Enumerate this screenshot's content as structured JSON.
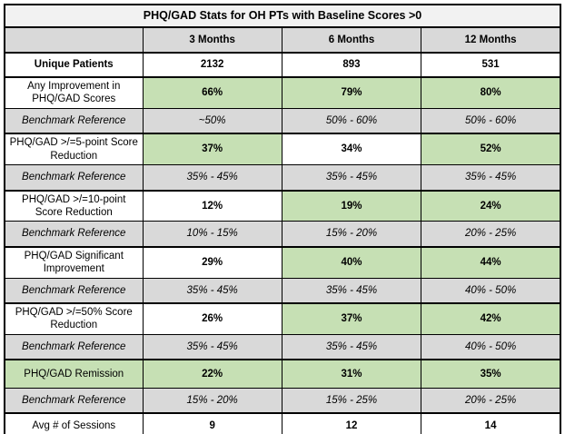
{
  "page": {
    "background": "#d9d9d9",
    "sheet_background": "#ffffff"
  },
  "colors": {
    "highlight_green": "#c6e0b4",
    "benchmark_gray": "#d9d9d9",
    "header_gray": "#d9d9d9",
    "title_bg": "#f2f2f2",
    "border": "#000000"
  },
  "table": {
    "title": "PHQ/GAD Stats for OH PTs with Baseline Scores >0",
    "column_headers": [
      "",
      "3 Months",
      "6 Months",
      "12 Months"
    ],
    "rows": [
      {
        "kind": "stat",
        "bold_label": true,
        "label_highlight": false,
        "label": "Unique Patients",
        "values": [
          "2132",
          "893",
          "531"
        ],
        "value_highlights": [
          false,
          false,
          false
        ]
      },
      {
        "kind": "metric",
        "bold_label": false,
        "label_highlight": false,
        "label": "Any Improvement in PHQ/GAD Scores",
        "values": [
          "66%",
          "79%",
          "80%"
        ],
        "value_highlights": [
          true,
          true,
          true
        ]
      },
      {
        "kind": "benchmark",
        "bold_label": false,
        "label_highlight": false,
        "label": "Benchmark Reference",
        "values": [
          "~50%",
          "50% - 60%",
          "50% - 60%"
        ],
        "value_highlights": [
          false,
          false,
          false
        ]
      },
      {
        "kind": "metric",
        "bold_label": false,
        "label_highlight": false,
        "label": "PHQ/GAD >/=5-point Score Reduction",
        "values": [
          "37%",
          "34%",
          "52%"
        ],
        "value_highlights": [
          true,
          false,
          true
        ]
      },
      {
        "kind": "benchmark",
        "bold_label": false,
        "label_highlight": false,
        "label": "Benchmark Reference",
        "values": [
          "35% - 45%",
          "35% - 45%",
          "35% - 45%"
        ],
        "value_highlights": [
          false,
          false,
          false
        ]
      },
      {
        "kind": "metric",
        "bold_label": false,
        "label_highlight": false,
        "label": "PHQ/GAD >/=10-point Score Reduction",
        "values": [
          "12%",
          "19%",
          "24%"
        ],
        "value_highlights": [
          false,
          true,
          true
        ]
      },
      {
        "kind": "benchmark",
        "bold_label": false,
        "label_highlight": false,
        "label": "Benchmark Reference",
        "values": [
          "10% - 15%",
          "15% - 20%",
          "20% - 25%"
        ],
        "value_highlights": [
          false,
          false,
          false
        ]
      },
      {
        "kind": "metric",
        "bold_label": false,
        "label_highlight": false,
        "label": "PHQ/GAD Significant Improvement",
        "values": [
          "29%",
          "40%",
          "44%"
        ],
        "value_highlights": [
          false,
          true,
          true
        ]
      },
      {
        "kind": "benchmark",
        "bold_label": false,
        "label_highlight": false,
        "label": "Benchmark Reference",
        "values": [
          "35% - 45%",
          "35% - 45%",
          "40% - 50%"
        ],
        "value_highlights": [
          false,
          false,
          false
        ]
      },
      {
        "kind": "metric",
        "bold_label": false,
        "label_highlight": false,
        "label": "PHQ/GAD >/=50% Score Reduction",
        "values": [
          "26%",
          "37%",
          "42%"
        ],
        "value_highlights": [
          false,
          true,
          true
        ]
      },
      {
        "kind": "benchmark",
        "bold_label": false,
        "label_highlight": false,
        "label": "Benchmark Reference",
        "values": [
          "35% - 45%",
          "35% - 45%",
          "40% - 50%"
        ],
        "value_highlights": [
          false,
          false,
          false
        ]
      },
      {
        "kind": "metric",
        "bold_label": false,
        "label_highlight": true,
        "label": "PHQ/GAD Remission",
        "values": [
          "22%",
          "31%",
          "35%"
        ],
        "value_highlights": [
          true,
          true,
          true
        ]
      },
      {
        "kind": "benchmark",
        "bold_label": false,
        "label_highlight": false,
        "label": "Benchmark Reference",
        "values": [
          "15% - 20%",
          "15% - 25%",
          "20% - 25%"
        ],
        "value_highlights": [
          false,
          false,
          false
        ]
      },
      {
        "kind": "stat",
        "bold_label": false,
        "label_highlight": false,
        "label": "Avg # of Sessions",
        "values": [
          "9",
          "12",
          "14"
        ],
        "value_highlights": [
          false,
          false,
          false
        ]
      }
    ]
  },
  "chart_data": {
    "type": "table",
    "title": "PHQ/GAD Stats for OH PTs with Baseline Scores >0",
    "columns": [
      "3 Months",
      "6 Months",
      "12 Months"
    ],
    "unique_patients": [
      2132,
      893,
      531
    ],
    "metrics": [
      {
        "name": "Any Improvement in PHQ/GAD Scores",
        "values_pct": [
          66,
          79,
          80
        ],
        "benchmark_reference": [
          "~50%",
          "50% - 60%",
          "50% - 60%"
        ]
      },
      {
        "name": "PHQ/GAD >/=5-point Score Reduction",
        "values_pct": [
          37,
          34,
          52
        ],
        "benchmark_reference": [
          "35% - 45%",
          "35% - 45%",
          "35% - 45%"
        ]
      },
      {
        "name": "PHQ/GAD >/=10-point Score Reduction",
        "values_pct": [
          12,
          19,
          24
        ],
        "benchmark_reference": [
          "10% - 15%",
          "15% - 20%",
          "20% - 25%"
        ]
      },
      {
        "name": "PHQ/GAD Significant Improvement",
        "values_pct": [
          29,
          40,
          44
        ],
        "benchmark_reference": [
          "35% - 45%",
          "35% - 45%",
          "40% - 50%"
        ]
      },
      {
        "name": "PHQ/GAD >/=50% Score Reduction",
        "values_pct": [
          26,
          37,
          42
        ],
        "benchmark_reference": [
          "35% - 45%",
          "35% - 45%",
          "40% - 50%"
        ]
      },
      {
        "name": "PHQ/GAD Remission",
        "values_pct": [
          22,
          31,
          35
        ],
        "benchmark_reference": [
          "15% - 20%",
          "15% - 25%",
          "20% - 25%"
        ]
      }
    ],
    "avg_sessions": [
      9,
      12,
      14
    ],
    "highlight_meaning": "green cell = highlighted result value"
  }
}
